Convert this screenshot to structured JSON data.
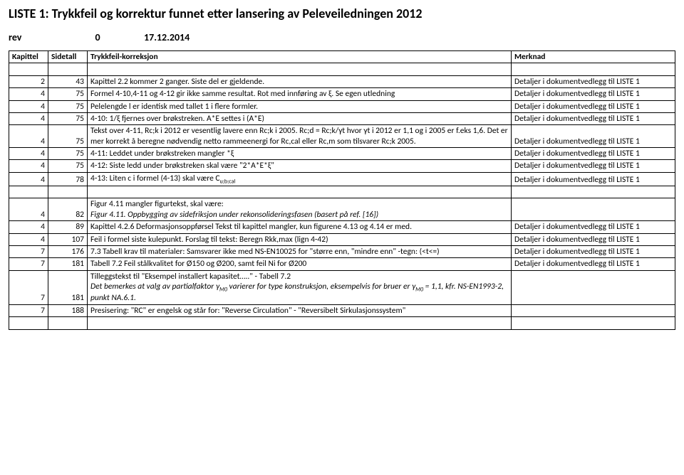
{
  "title": "LISTE 1: Trykkfeil og korrektur funnet etter lansering av  Peleveiledningen 2012",
  "rev": {
    "label": "rev",
    "value": "0",
    "date": "17.12.2014"
  },
  "headers": {
    "kapittel": "Kapittel",
    "sidetall": "Sidetall",
    "trykkfeil": "Trykkfeil-korreksjon",
    "merknad": "Merknad"
  },
  "note": "Detaljer i dokumentvedlegg til LISTE 1",
  "rows": [
    {
      "kap": "2",
      "side": "43",
      "text": "Kapittel 2.2 kommer 2 ganger. Siste del er gjeldende.",
      "merk": true
    },
    {
      "kap": "4",
      "side": "75",
      "text": "Formel 4-10,4-11 og 4-12 gir ikke samme resultat. Rot med innføring av ξ. Se egen utledning",
      "merk": true,
      "multi": 2
    },
    {
      "kap": "4",
      "side": "75",
      "text": "Pelelengde l er identisk med tallet 1 i flere formler.",
      "merk": true
    },
    {
      "kap": "4",
      "side": "75",
      "text": "4-10: 1/ξ fjernes over brøkstreken. A*E settes i (A*E)",
      "merk": true
    },
    {
      "kap": "4",
      "side": "75",
      "text": "Tekst over 4-11, Rc;k i 2012 er vesentlig lavere enn Rc;k i 2005. Rc;d = Rc;k/γt hvor γt i 2012 er 1,1 og i 2005 er f.eks 1,6.   Det er mer korrekt å beregne nødvendig netto rammeenergi for Rc,cal eller Rc,m som tilsvarer Rc;k 2005.",
      "merk": true,
      "multi": 3
    },
    {
      "kap": "4",
      "side": "75",
      "text": "4-11: Leddet under brøkstreken mangler *ξ",
      "merk": true
    },
    {
      "kap": "4",
      "side": "75",
      "text": "4-12: Siste ledd under brøkstreken skal være \"2*A*E*ξ\"",
      "merk": true
    },
    {
      "kap": "4",
      "side": "78",
      "html": "4-13: Liten c i formel (4-13) skal være C<sub>u;b;cal</sub>",
      "merk": true
    },
    {
      "blank": true
    },
    {
      "kap": "4",
      "side": "82",
      "html": "Figur 4.11 mangler figurtekst, skal være:<br><span class=\"italic\">Figur 4.11. Oppbygging av sidefriksjon under rekonsolideringsfasen (basert på ref. [16])</span>",
      "merk": false,
      "multi": 2
    },
    {
      "kap": "4",
      "side": "89",
      "text": "Kapittel 4.2.6 Deformasjonsoppførsel\nTekst til kapittel mangler, kun figurene 4.13 og 4.14 er med.",
      "merk": true,
      "multi": 2
    },
    {
      "kap": "4",
      "side": "107",
      "text": "Feil i formel siste kulepunkt. Forslag til tekst: Beregn Rkk,max (lign 4-42)",
      "merk": true
    },
    {
      "kap": "7",
      "side": "176",
      "text": "7.3 Tabell krav til materialer: Samsvarer ikke med NS-EN10025 for \"større enn, \"mindre enn\" -tegn: (<t<=)",
      "merk": true,
      "multi": 2
    },
    {
      "kap": "7",
      "side": "181",
      "text": "Tabell 7.2 Feil stålkvalitet for Ø150 og Ø200, samt feil Ni for Ø200",
      "merk": true
    },
    {
      "kap": "7",
      "side": "181",
      "html": "Tilleggstekst til \"Eksempel installert kapasitet…..\" - Tabell 7.2<br><span class=\"italic\">Det bemerkes at valg av partialfaktor γ<sub>M0</sub> varierer for type konstruksjon, eksempelvis for bruer er  γ<sub>M0</sub> = 1,1, kfr. NS-EN1993-2, punkt NA.6.1.</span>",
      "merk": false,
      "multi": 3
    },
    {
      "kap": "7",
      "side": "188",
      "text": "Presisering: \"RC\" er engelsk og står for: \"Reverse Circulation\" - \"Reversibelt Sirkulasjonssystem\"",
      "merk": false,
      "multi": 2
    },
    {
      "blank": true
    }
  ]
}
